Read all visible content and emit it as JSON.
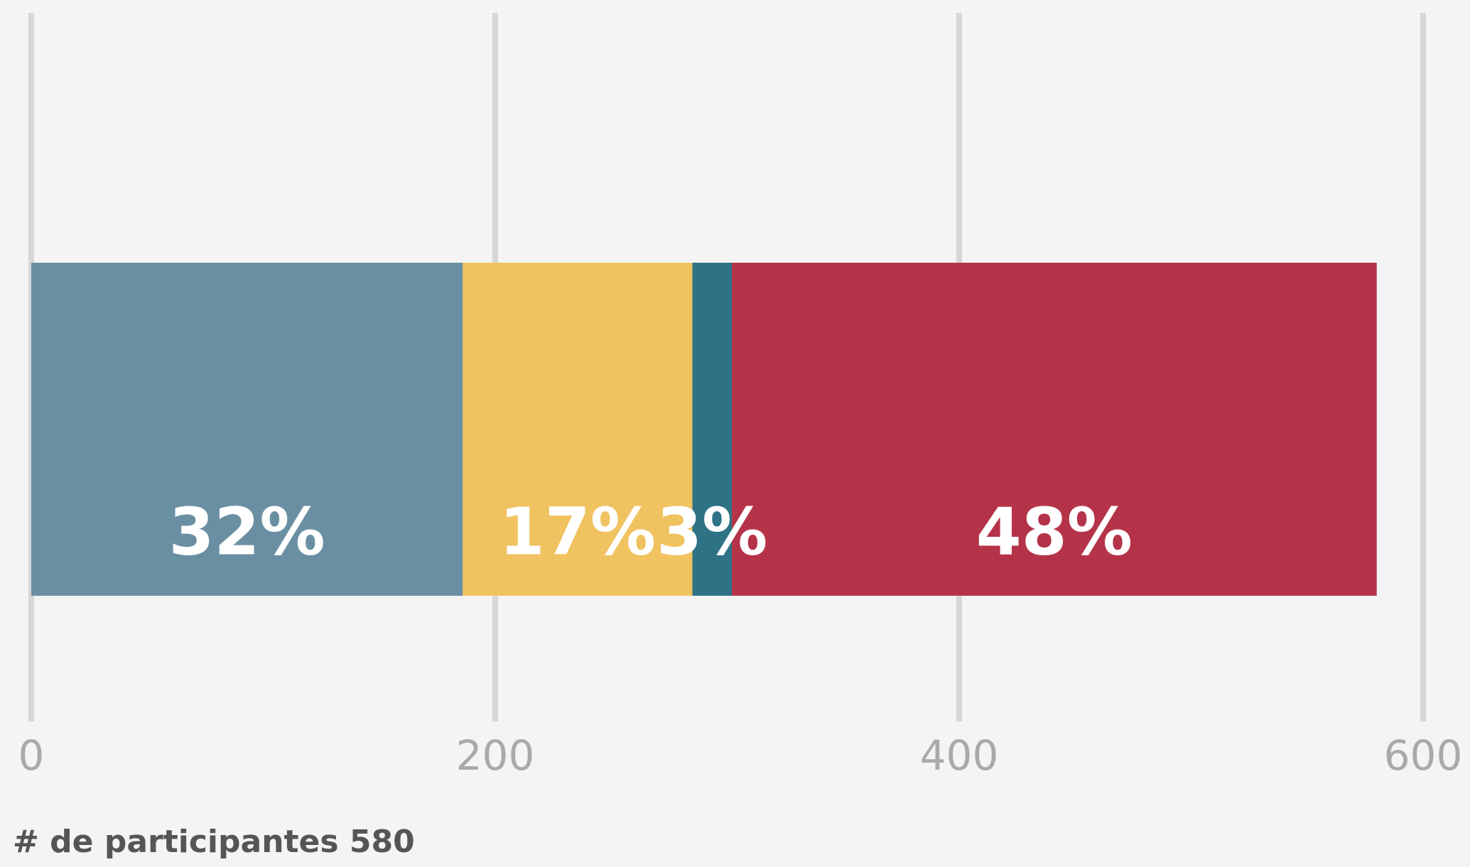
{
  "chart_data": {
    "type": "stacked-bar",
    "values": [
      186,
      99,
      17,
      278
    ],
    "value_labels": [
      "32%",
      "17%",
      "3%",
      "48%"
    ],
    "colors": [
      "#6a8fa3",
      "#f0c260",
      "#2e7285",
      "#b53349"
    ],
    "xlim": [
      0,
      600
    ],
    "xticks": [
      0,
      200,
      400,
      600
    ],
    "grid": true,
    "note": "# de participantes 580"
  }
}
